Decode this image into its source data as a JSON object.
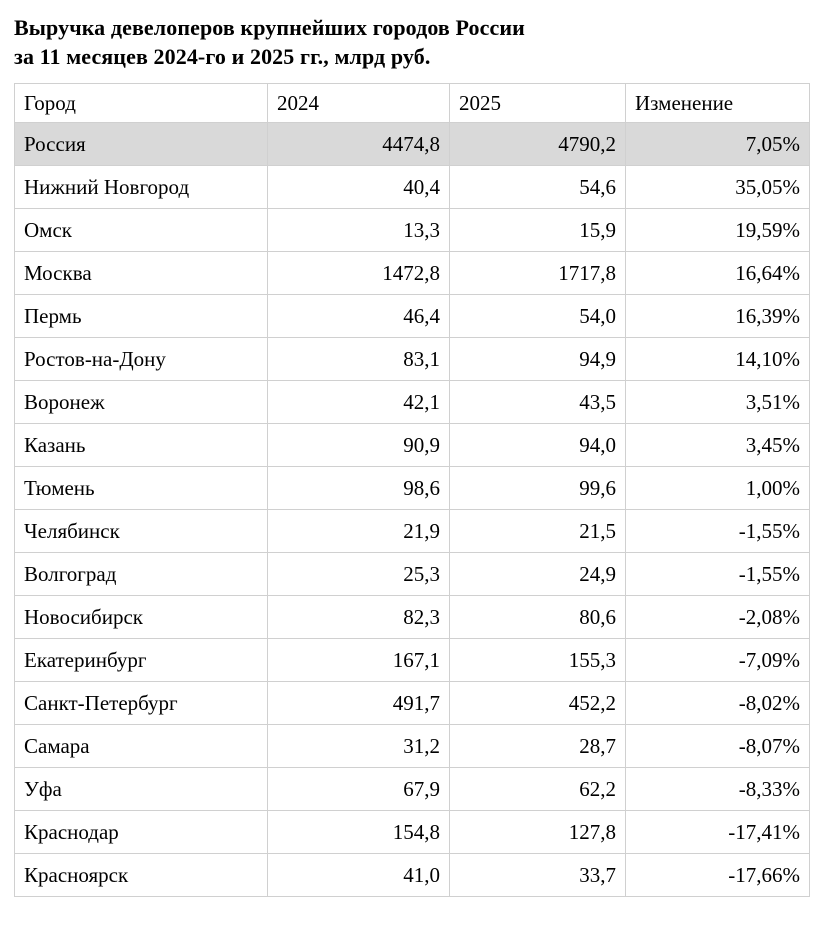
{
  "title": {
    "line1": "Выручка девелоперов крупнейших городов России",
    "line2": "за 11 месяцев 2024-го и 2025 гг., млрд руб."
  },
  "chart_data": {
    "type": "table",
    "title": "Выручка девелоперов крупнейших городов России за 11 месяцев 2024-го и 2025 гг., млрд руб.",
    "unit": "млрд руб.",
    "columns": [
      "Город",
      "2024",
      "2025",
      "Изменение"
    ],
    "highlighted_row": "Россия",
    "rows": [
      {
        "city": "Россия",
        "y2024": "4474,8",
        "y2025": "4790,2",
        "change": "7,05%",
        "highlighted": true
      },
      {
        "city": "Нижний Новгород",
        "y2024": "40,4",
        "y2025": "54,6",
        "change": "35,05%",
        "highlighted": false
      },
      {
        "city": "Омск",
        "y2024": "13,3",
        "y2025": "15,9",
        "change": "19,59%",
        "highlighted": false
      },
      {
        "city": "Москва",
        "y2024": "1472,8",
        "y2025": "1717,8",
        "change": "16,64%",
        "highlighted": false
      },
      {
        "city": "Пермь",
        "y2024": "46,4",
        "y2025": "54,0",
        "change": "16,39%",
        "highlighted": false
      },
      {
        "city": "Ростов-на-Дону",
        "y2024": "83,1",
        "y2025": "94,9",
        "change": "14,10%",
        "highlighted": false
      },
      {
        "city": "Воронеж",
        "y2024": "42,1",
        "y2025": "43,5",
        "change": "3,51%",
        "highlighted": false
      },
      {
        "city": "Казань",
        "y2024": "90,9",
        "y2025": "94,0",
        "change": "3,45%",
        "highlighted": false
      },
      {
        "city": "Тюмень",
        "y2024": "98,6",
        "y2025": "99,6",
        "change": "1,00%",
        "highlighted": false
      },
      {
        "city": "Челябинск",
        "y2024": "21,9",
        "y2025": "21,5",
        "change": "-1,55%",
        "highlighted": false
      },
      {
        "city": "Волгоград",
        "y2024": "25,3",
        "y2025": "24,9",
        "change": "-1,55%",
        "highlighted": false
      },
      {
        "city": "Новосибирск",
        "y2024": "82,3",
        "y2025": "80,6",
        "change": "-2,08%",
        "highlighted": false
      },
      {
        "city": "Екатеринбург",
        "y2024": "167,1",
        "y2025": "155,3",
        "change": "-7,09%",
        "highlighted": false
      },
      {
        "city": "Санкт-Петербург",
        "y2024": "491,7",
        "y2025": "452,2",
        "change": "-8,02%",
        "highlighted": false
      },
      {
        "city": "Самара",
        "y2024": "31,2",
        "y2025": "28,7",
        "change": "-8,07%",
        "highlighted": false
      },
      {
        "city": "Уфа",
        "y2024": "67,9",
        "y2025": "62,2",
        "change": "-8,33%",
        "highlighted": false
      },
      {
        "city": "Краснодар",
        "y2024": "154,8",
        "y2025": "127,8",
        "change": "-17,41%",
        "highlighted": false
      },
      {
        "city": "Красноярск",
        "y2024": "41,0",
        "y2025": "33,7",
        "change": "-17,66%",
        "highlighted": false
      }
    ]
  },
  "colors": {
    "background": "#ffffff",
    "text": "#000000",
    "table_border": "#d0d0d0",
    "highlight_row_bg": "#d9d9d9"
  }
}
